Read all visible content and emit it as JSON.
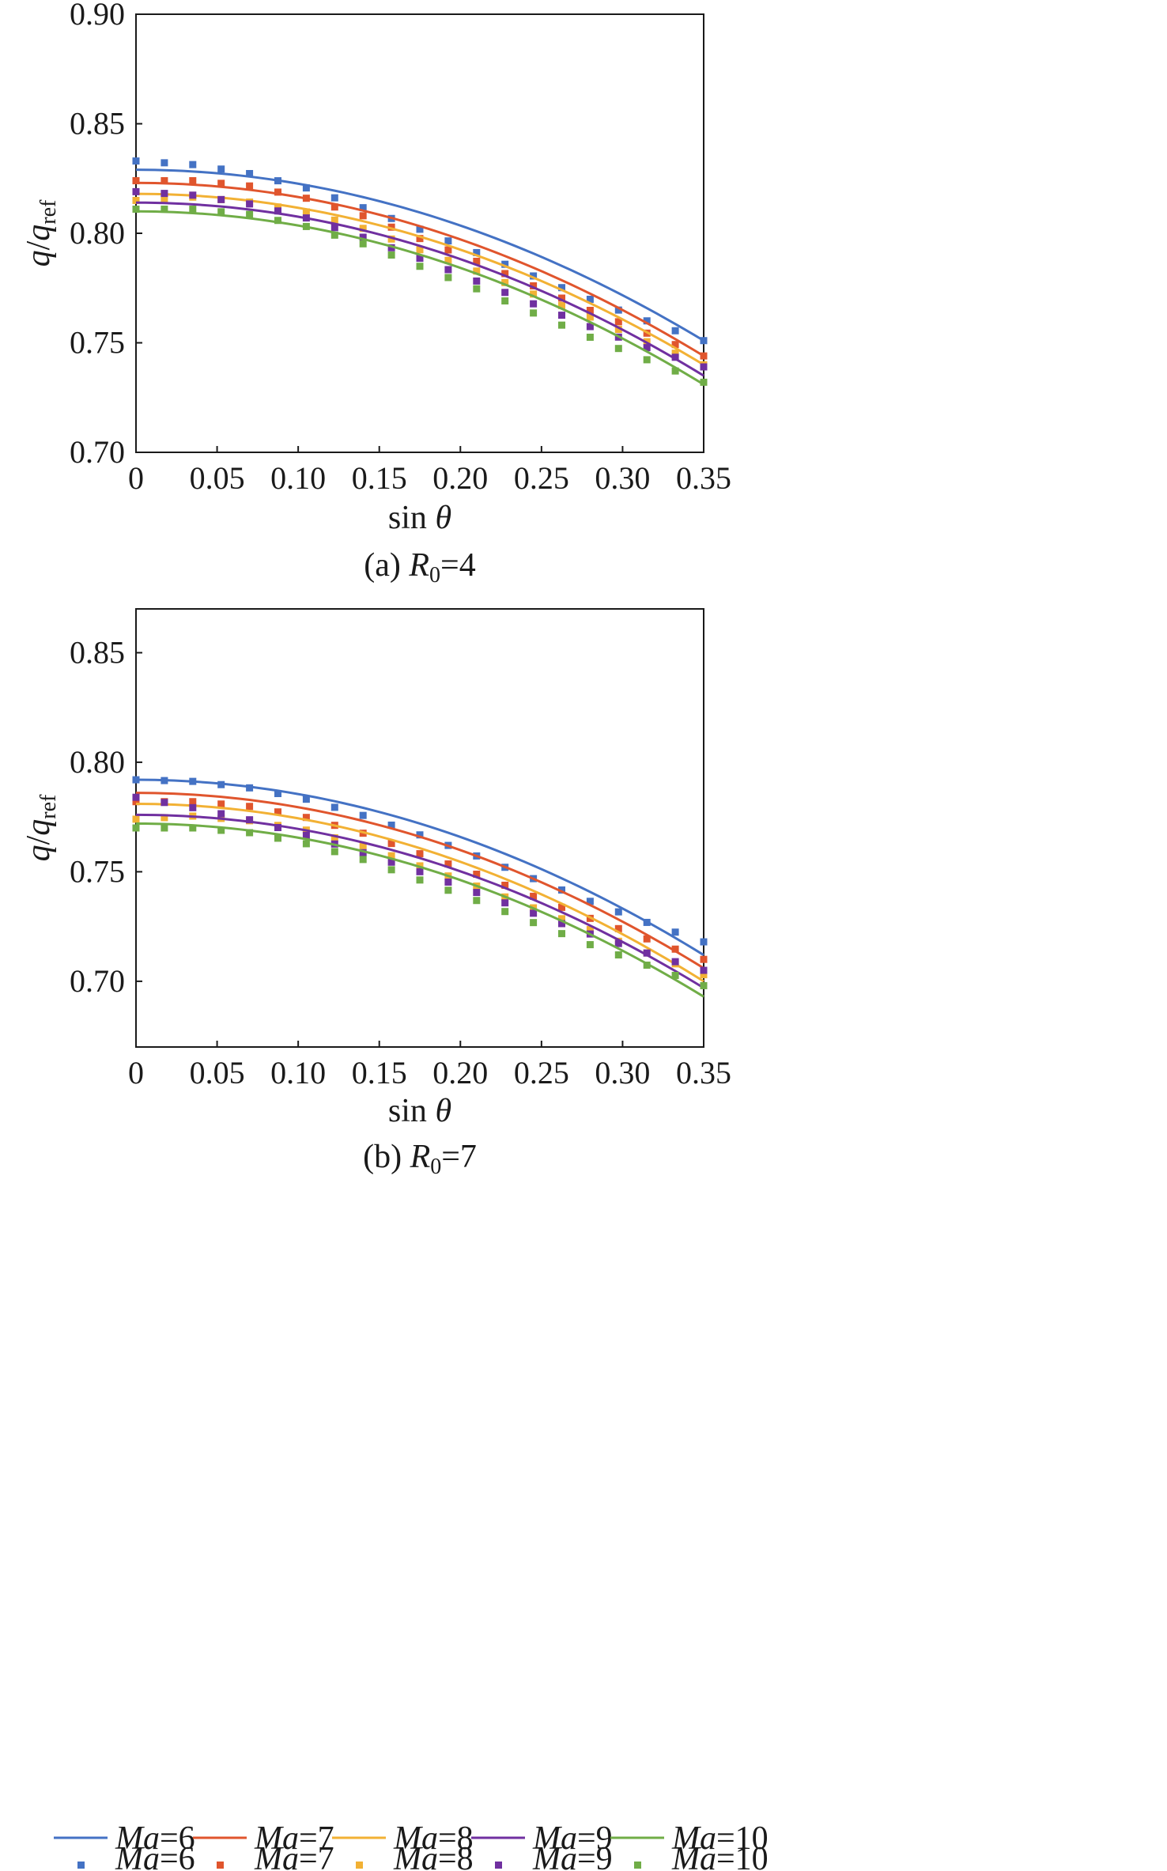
{
  "chart_data": [
    {
      "type": "line",
      "caption": {
        "prefix": "(a) ",
        "var": "R",
        "sub": "0",
        "suffix": "=4"
      },
      "xlabel": {
        "text": "sin ",
        "var": "θ"
      },
      "ylabel": {
        "var": "q",
        "sep": "/",
        "var2": "q",
        "sub": "ref"
      },
      "xlim": [
        0,
        0.35
      ],
      "ylim": [
        0.7,
        0.9
      ],
      "xticks": [
        0,
        0.05,
        0.1,
        0.15,
        0.2,
        0.25,
        0.3,
        0.35
      ],
      "xtick_labels": [
        "0",
        "0.05",
        "0.10",
        "0.15",
        "0.20",
        "0.25",
        "0.30",
        "0.35"
      ],
      "yticks": [
        0.7,
        0.75,
        0.8,
        0.85,
        0.9
      ],
      "ytick_labels": [
        "0.70",
        "0.75",
        "0.80",
        "0.85",
        "0.90"
      ],
      "grid": false,
      "legend": "none",
      "series": [
        {
          "name": "Ma=6",
          "color": "#4472c4",
          "line": {
            "y0": 0.829,
            "yend": 0.751
          },
          "points": {
            "y0": 0.833,
            "yend": 0.751,
            "shape": [
              0,
              0.02,
              0.07,
              0.15,
              0.26,
              0.38,
              0.51,
              0.64,
              0.77,
              0.89,
              1.0
            ]
          }
        },
        {
          "name": "Ma=7",
          "color": "#e0552d",
          "line": {
            "y0": 0.823,
            "yend": 0.744
          },
          "points": {
            "y0": 0.824,
            "yend": 0.744,
            "shape": [
              0,
              0.0,
              0.03,
              0.1,
              0.2,
              0.33,
              0.46,
              0.6,
              0.74,
              0.87,
              1.0
            ]
          }
        },
        {
          "name": "Ma=8",
          "color": "#f2b134",
          "line": {
            "y0": 0.818,
            "yend": 0.74
          },
          "points": {
            "y0": 0.815,
            "yend": 0.74,
            "shape": [
              0,
              -0.02,
              0.01,
              0.07,
              0.17,
              0.3,
              0.43,
              0.57,
              0.71,
              0.86,
              1.0
            ]
          }
        },
        {
          "name": "Ma=9",
          "color": "#7030a0",
          "line": {
            "y0": 0.814,
            "yend": 0.735
          },
          "points": {
            "y0": 0.819,
            "yend": 0.739,
            "shape": [
              0,
              0.02,
              0.07,
              0.15,
              0.26,
              0.38,
              0.51,
              0.64,
              0.77,
              0.89,
              1.0
            ]
          }
        },
        {
          "name": "Ma=10",
          "color": "#70ad47",
          "line": {
            "y0": 0.81,
            "yend": 0.731
          },
          "points": {
            "y0": 0.811,
            "yend": 0.732,
            "shape": [
              0,
              0.0,
              0.03,
              0.1,
              0.2,
              0.33,
              0.46,
              0.6,
              0.74,
              0.87,
              1.0
            ]
          }
        }
      ]
    },
    {
      "type": "line",
      "caption": {
        "prefix": "(b) ",
        "var": "R",
        "sub": "0",
        "suffix": "=7"
      },
      "xlabel": {
        "text": "sin ",
        "var": "θ"
      },
      "ylabel": {
        "var": "q",
        "sep": "/",
        "var2": "q",
        "sub": "ref"
      },
      "xlim": [
        0,
        0.35
      ],
      "ylim": [
        0.67,
        0.87
      ],
      "xticks": [
        0,
        0.05,
        0.1,
        0.15,
        0.2,
        0.25,
        0.3,
        0.35
      ],
      "xtick_labels": [
        "0",
        "0.05",
        "0.10",
        "0.15",
        "0.20",
        "0.25",
        "0.30",
        "0.35"
      ],
      "yticks": [
        0.7,
        0.75,
        0.8,
        0.85
      ],
      "ytick_labels": [
        "0.70",
        "0.75",
        "0.80",
        "0.85"
      ],
      "grid": false,
      "legend": "bottom",
      "series": [
        {
          "name": "Ma=6",
          "color": "#4472c4",
          "line": {
            "y0": 0.792,
            "yend": 0.712
          },
          "points": {
            "y0": 0.792,
            "yend": 0.718,
            "shape": [
              0,
              0.01,
              0.05,
              0.12,
              0.22,
              0.34,
              0.47,
              0.61,
              0.75,
              0.88,
              1.0
            ]
          }
        },
        {
          "name": "Ma=7",
          "color": "#e0552d",
          "line": {
            "y0": 0.786,
            "yend": 0.706
          },
          "points": {
            "y0": 0.782,
            "yend": 0.71,
            "shape": [
              0,
              0.0,
              0.03,
              0.1,
              0.2,
              0.33,
              0.46,
              0.6,
              0.74,
              0.87,
              1.0
            ]
          }
        },
        {
          "name": "Ma=8",
          "color": "#f2b134",
          "line": {
            "y0": 0.781,
            "yend": 0.7
          },
          "points": {
            "y0": 0.774,
            "yend": 0.703,
            "shape": [
              0,
              -0.02,
              0.01,
              0.07,
              0.17,
              0.3,
              0.43,
              0.57,
              0.71,
              0.86,
              1.0
            ]
          }
        },
        {
          "name": "Ma=9",
          "color": "#7030a0",
          "line": {
            "y0": 0.776,
            "yend": 0.697
          },
          "points": {
            "y0": 0.784,
            "yend": 0.705,
            "shape": [
              0,
              0.06,
              0.13,
              0.22,
              0.32,
              0.43,
              0.55,
              0.67,
              0.79,
              0.9,
              1.0
            ]
          }
        },
        {
          "name": "Ma=10",
          "color": "#70ad47",
          "line": {
            "y0": 0.772,
            "yend": 0.693
          },
          "points": {
            "y0": 0.77,
            "yend": 0.698,
            "shape": [
              0,
              0.0,
              0.03,
              0.1,
              0.2,
              0.33,
              0.46,
              0.6,
              0.74,
              0.87,
              1.0
            ]
          }
        }
      ]
    }
  ],
  "legend": {
    "line_entries": [
      {
        "name": "Ma=6",
        "var": "Ma",
        "rest": "=6",
        "color": "#4472c4"
      },
      {
        "name": "Ma=7",
        "var": "Ma",
        "rest": "=7",
        "color": "#e0552d"
      },
      {
        "name": "Ma=8",
        "var": "Ma",
        "rest": "=8",
        "color": "#f2b134"
      },
      {
        "name": "Ma=9",
        "var": "Ma",
        "rest": "=9",
        "color": "#7030a0"
      },
      {
        "name": "Ma=10",
        "var": "Ma",
        "rest": "=10",
        "color": "#70ad47"
      }
    ],
    "marker_entries": [
      {
        "name": "Ma=6",
        "var": "Ma",
        "rest": "=6",
        "color": "#4472c4"
      },
      {
        "name": "Ma=7",
        "var": "Ma",
        "rest": "=7",
        "color": "#e0552d"
      },
      {
        "name": "Ma=8",
        "var": "Ma",
        "rest": "=8",
        "color": "#f2b134"
      },
      {
        "name": "Ma=9",
        "var": "Ma",
        "rest": "=9",
        "color": "#7030a0"
      },
      {
        "name": "Ma=10",
        "var": "Ma",
        "rest": "=10",
        "color": "#70ad47"
      }
    ]
  }
}
